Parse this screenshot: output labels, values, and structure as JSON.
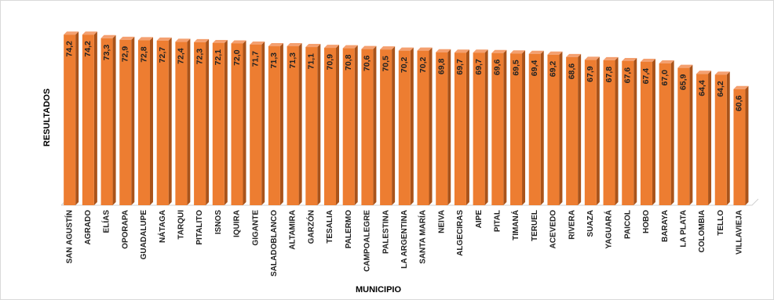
{
  "chart_data": {
    "type": "bar",
    "x_label": "MUNICIPIO",
    "y_label": "RESULTADOS",
    "categories": [
      "SAN AGUSTÍN",
      "AGRADO",
      "ELÍAS",
      "OPORAPA",
      "GUADALUPE",
      "NÁTAGA",
      "TARQUI",
      "PITALITO",
      "ISNOS",
      "IQUIRA",
      "GIGANTE",
      "SALADOBLANCO",
      "ALTAMIRA",
      "GARZÓN",
      "TESALIA",
      "PALERMO",
      "CAMPOALEGRE",
      "PALESTINA",
      "LA ARGENTINA",
      "SANTA MARÍA",
      "NEIVA",
      "ALGECIRAS",
      "AIPE",
      "PITAL",
      "TIMANÁ",
      "TERUEL",
      "ACEVEDO",
      "RIVERA",
      "SUAZA",
      "YAGUARÁ",
      "PAICOL",
      "HOBO",
      "BARAYA",
      "LA PLATA",
      "COLOMBIA",
      "TELLO",
      "VILLAVIEJA"
    ],
    "values": [
      74.2,
      74.2,
      73.3,
      72.9,
      72.8,
      72.7,
      72.4,
      72.3,
      72.1,
      72.0,
      71.7,
      71.3,
      71.3,
      71.1,
      70.9,
      70.8,
      70.6,
      70.5,
      70.2,
      70.2,
      69.8,
      69.7,
      69.7,
      69.6,
      69.5,
      69.4,
      69.2,
      68.6,
      67.9,
      67.8,
      67.6,
      67.4,
      67.0,
      65.9,
      64.4,
      64.2,
      60.6
    ],
    "value_labels": [
      "74,2",
      "74,2",
      "73,3",
      "72,9",
      "72,8",
      "72,7",
      "72,4",
      "72,3",
      "72,1",
      "72,0",
      "71,7",
      "71,3",
      "71,3",
      "71,1",
      "70,9",
      "70,8",
      "70,6",
      "70,5",
      "70,2",
      "70,2",
      "69,8",
      "69,7",
      "69,7",
      "69,6",
      "69,5",
      "69,4",
      "69,2",
      "68,6",
      "67,9",
      "67,8",
      "67,6",
      "67,4",
      "67,0",
      "65,9",
      "64,4",
      "64,2",
      "60,6"
    ],
    "color": "#ed7d31",
    "ylim": [
      31.6,
      76
    ]
  }
}
